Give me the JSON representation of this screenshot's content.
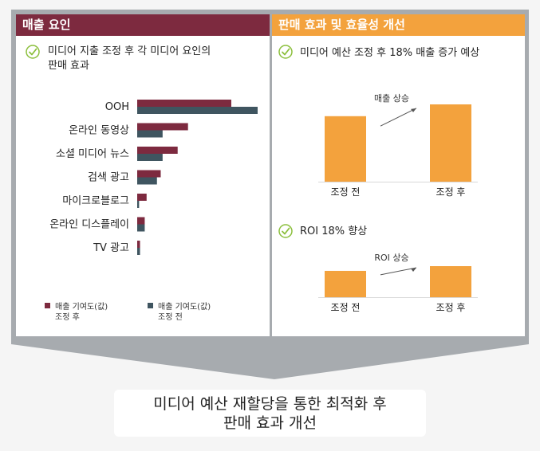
{
  "left_panel": {
    "title": "매출 요인",
    "subtitle_line1": "미디어 지출 조정 후 각 미디어 요인의",
    "subtitle_line2": "판매 효과"
  },
  "right_panel": {
    "title": "판매 효과 및 효율성 개선",
    "sales_subtitle": "미디어 예산 조정 후 18% 매출 증가 예상",
    "roi_subtitle": "ROI 18% 향상"
  },
  "bottom": {
    "line1": "미디어 예산 재할당을 통한 최적화 후",
    "line2": "판매 효과 개선"
  },
  "colors": {
    "maroon": "#7d2a3f",
    "slate": "#3f5560",
    "orange": "#f3a23d",
    "frame": "#a7abaf"
  },
  "chart_data": [
    {
      "type": "bar",
      "orientation": "horizontal",
      "categories": [
        "OOH",
        "온라인 동영상",
        "소셜 미디어 뉴스",
        "검색 광고",
        "마이크로블로그",
        "온라인 디스플레이",
        "TV 광고"
      ],
      "series": [
        {
          "name": "매출 기여도(값) 조정 후",
          "color": "#7d2a3f",
          "values": [
            100,
            54,
            43,
            25,
            10,
            8,
            3
          ]
        },
        {
          "name": "매출 기여도(값) 조정 전",
          "color": "#3f5560",
          "values": [
            128,
            27,
            27,
            21,
            2,
            8,
            3
          ]
        }
      ],
      "legend": "bottom",
      "grid": false
    },
    {
      "type": "bar",
      "categories": [
        "조정 전",
        "조정 후"
      ],
      "values": [
        100,
        118
      ],
      "annotation": "매출 상승",
      "grid": false
    },
    {
      "type": "bar",
      "categories": [
        "조정 전",
        "조정 후"
      ],
      "values": [
        100,
        118
      ],
      "annotation": "ROI 상승",
      "grid": false
    }
  ]
}
